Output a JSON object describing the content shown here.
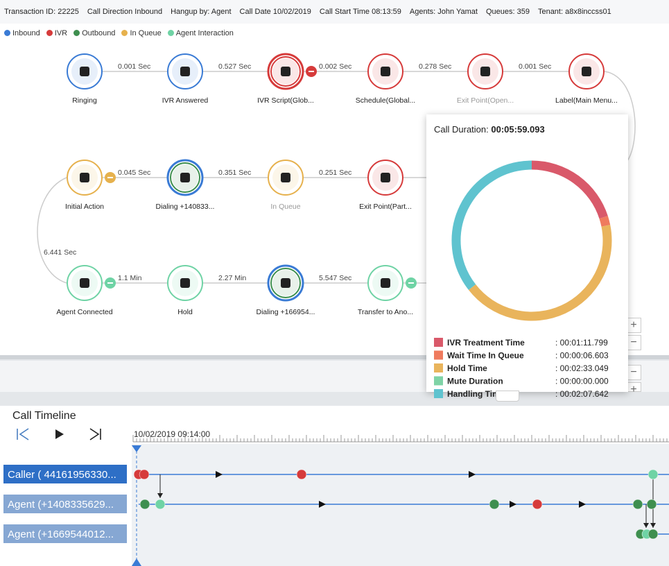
{
  "header": {
    "items": [
      "Transaction ID: 22225",
      "Call Direction Inbound",
      "Hangup by: Agent",
      "Call Date 10/02/2019",
      "Call Start Time 08:13:59",
      "Agents: John Yamat",
      "Queues: 359",
      "Tenant: a8x8inccss01"
    ]
  },
  "legend": [
    {
      "name": "Inbound",
      "color": "#3a7bd5"
    },
    {
      "name": "IVR",
      "color": "#d63b3b"
    },
    {
      "name": "Outbound",
      "color": "#3e8f4f"
    },
    {
      "name": "In Queue",
      "color": "#e6b14d"
    },
    {
      "name": "Agent Interaction",
      "color": "#6fd3a5"
    }
  ],
  "flow": {
    "rows": [
      {
        "nodes": [
          {
            "label": "Ringing",
            "color": "#3a7bd5"
          },
          {
            "label": "IVR Answered",
            "color": "#3a7bd5"
          },
          {
            "label": "IVR Script(Glob...",
            "color": "#d63b3b",
            "ring": "#d63b3b",
            "badge": "#d63b3b"
          },
          {
            "label": "Schedule(Global...",
            "color": "#d63b3b"
          },
          {
            "label": "Exit Point(Open...",
            "color": "#d63b3b",
            "muted": true
          },
          {
            "label": "Label(Main Menu...",
            "color": "#d63b3b"
          }
        ],
        "edges": [
          "0.001 Sec",
          "0.527 Sec",
          "0.002 Sec",
          "0.278 Sec",
          "0.001 Sec"
        ]
      },
      {
        "nodes": [
          {
            "label": "Initial Action",
            "color": "#e6b14d",
            "badge": "#e6b14d"
          },
          {
            "label": "Dialing +140833...",
            "color": "#3e8f4f",
            "ring": "#3a7bd5"
          },
          {
            "label": "In Queue",
            "color": "#e6b14d",
            "muted": true
          },
          {
            "label": "Exit Point(Part...",
            "color": "#d63b3b"
          }
        ],
        "edges": [
          "0.045 Sec",
          "0.351 Sec",
          "0.251 Sec"
        ]
      },
      {
        "nodes": [
          {
            "label": "Agent Connected",
            "color": "#6fd3a5",
            "badge": "#6fd3a5"
          },
          {
            "label": "Hold",
            "color": "#6fd3a5"
          },
          {
            "label": "Dialing +166954...",
            "color": "#3e8f4f",
            "ring": "#3a7bd5"
          },
          {
            "label": "Transfer to Ano...",
            "color": "#6fd3a5",
            "badge": "#6fd3a5"
          }
        ],
        "edges": [
          "1.1 Min",
          "2.27 Min",
          "5.547 Sec"
        ]
      }
    ],
    "connectors": [
      "6.441 Sec"
    ]
  },
  "popup": {
    "title": "Call Duration:",
    "total": "00:05:59.093",
    "chart_data": {
      "type": "donut",
      "categories": [
        "IVR Treatment Time",
        "Wait Time In Queue",
        "Hold Time",
        "Mute Duration",
        "Handling Time"
      ],
      "values": [
        71.799,
        6.603,
        153.049,
        0,
        127.642
      ],
      "value_labels": [
        ": 00:01:11.799",
        ": 00:00:06.603",
        ": 00:02:33.049",
        ": 00:00:00.000",
        ": 00:02:07.642"
      ],
      "colors": [
        "#d9596a",
        "#ef7b5e",
        "#e9b45c",
        "#7fd3a6",
        "#5fc3cf"
      ]
    }
  },
  "timeline": {
    "title": "Call Timeline",
    "start": "10/02/2019 09:14:00",
    "rows": [
      "Caller ( 44161956330...",
      "Agent (+1408335629...",
      "Agent (+1669544012..."
    ]
  }
}
